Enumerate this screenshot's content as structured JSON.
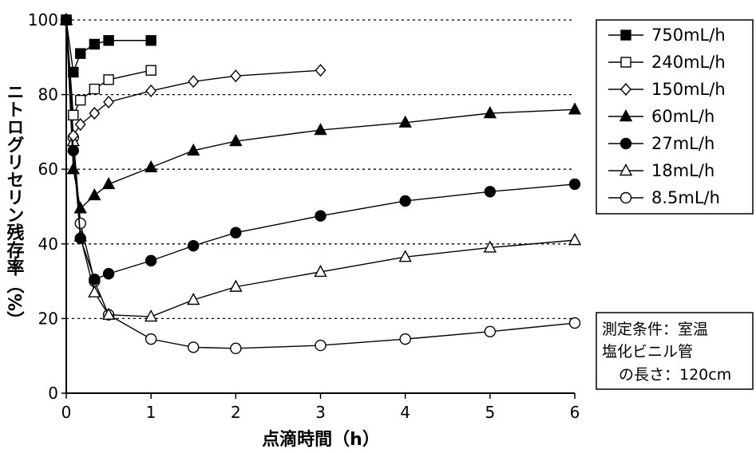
{
  "chart_data": {
    "type": "line",
    "xlabel": "点滴時間（h）",
    "ylabel": "ニトログリセリン残存率（%）",
    "xlim": [
      0,
      6
    ],
    "ylim": [
      0,
      100
    ],
    "x_ticks": [
      "0",
      "1",
      "2",
      "3",
      "4",
      "5",
      "6"
    ],
    "y_ticks": [
      "0",
      "20",
      "40",
      "60",
      "80",
      "100"
    ],
    "grid": "horizontal dotted at 20, 40, 60, 80, 100",
    "legend_position": "top-right",
    "series": [
      {
        "name": "750mL/h",
        "marker": "square",
        "fill": "filled",
        "x": [
          0,
          0.083,
          0.167,
          0.333,
          0.5,
          1
        ],
        "y": [
          100,
          86,
          91,
          93.5,
          94.5,
          94.5
        ]
      },
      {
        "name": "240mL/h",
        "marker": "square",
        "fill": "open",
        "x": [
          0,
          0.083,
          0.167,
          0.333,
          0.5,
          1
        ],
        "y": [
          100,
          74.5,
          78.5,
          81.5,
          84,
          86.5
        ]
      },
      {
        "name": "150mL/h",
        "marker": "diamond",
        "fill": "open",
        "x": [
          0,
          0.083,
          0.167,
          0.333,
          0.5,
          1,
          1.5,
          2,
          3
        ],
        "y": [
          100,
          69,
          72,
          75,
          78,
          81,
          83.5,
          85,
          86.5
        ]
      },
      {
        "name": "60mL/h",
        "marker": "triangle",
        "fill": "filled",
        "x": [
          0,
          0.083,
          0.167,
          0.333,
          0.5,
          1,
          1.5,
          2,
          3,
          4,
          5,
          6
        ],
        "y": [
          100,
          60,
          49.5,
          53,
          56,
          60.5,
          65,
          67.5,
          70.5,
          72.5,
          75,
          76
        ]
      },
      {
        "name": "27mL/h",
        "marker": "circle",
        "fill": "filled",
        "x": [
          0,
          0.083,
          0.167,
          0.333,
          0.5,
          1,
          1.5,
          2,
          3,
          4,
          5,
          6
        ],
        "y": [
          100,
          65,
          41.5,
          30.5,
          32,
          35.5,
          39.5,
          43,
          47.5,
          51.5,
          54,
          56
        ]
      },
      {
        "name": "18mL/h",
        "marker": "triangle",
        "fill": "open",
        "x": [
          0,
          0.083,
          0.167,
          0.333,
          0.5,
          1,
          1.5,
          2,
          3,
          4,
          5,
          6
        ],
        "y": [
          100,
          67.5,
          42,
          27,
          21,
          20.5,
          25,
          28.5,
          32.5,
          36.5,
          39,
          41
        ]
      },
      {
        "name": "8.5mL/h",
        "marker": "circle",
        "fill": "open",
        "x": [
          0,
          0.083,
          0.167,
          0.333,
          0.5,
          1,
          1.5,
          2,
          3,
          4,
          5,
          6
        ],
        "y": [
          100,
          68.5,
          45.5,
          30,
          21,
          14.5,
          12.3,
          12,
          12.8,
          14.5,
          16.5,
          18.8
        ]
      }
    ]
  },
  "conditions_note": [
    "測定条件：室温",
    "塩化ビニル管",
    "の長さ：120cm"
  ]
}
